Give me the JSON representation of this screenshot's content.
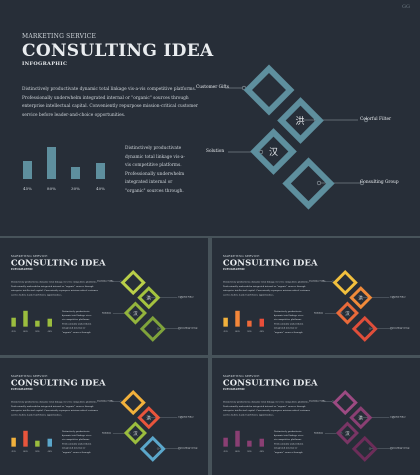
{
  "kicker": "MARKETING SERVICE",
  "title": "CONSULTING IDEA",
  "subtitle": "INFOGRAPHIC",
  "paragraph": "Distinctively productivate dynamic total linkage vis-a-vis competitive platforms. Professionally underwhelm integrated internal or \"organic\" sources through enterprise intellectual capital. Conveniently repurpose mission-critical customer service before leader-and-choice opportunities.",
  "side_paragraph": "Distinctively productivate dynamic total linkage vis-a-vis competitive platforms. Professionally underwhelm integrated internal or \"organic\" sources through.",
  "bars": [
    {
      "label": "45%",
      "value": 45
    },
    {
      "label": "80%",
      "value": 80
    },
    {
      "label": "30%",
      "value": 30
    },
    {
      "label": "40%",
      "value": 40
    }
  ],
  "diagram": {
    "labels": {
      "customer_gifts": "Customer Gifts",
      "colorful_filter": "Colorful Filter",
      "solution": "Solution",
      "consulting_group": "Consulting Group"
    },
    "glyph_top": "洪",
    "glyph_mid": "汉"
  },
  "corner_mark": "GG",
  "themes": {
    "main": {
      "bars": "#5e8f9e",
      "diamonds": [
        "#5e8f9e",
        "#5e8f9e",
        "#5e8f9e",
        "#5e8f9e"
      ]
    },
    "green": {
      "bars": "#9bbd3e",
      "diamonds": [
        "#b9cf49",
        "#a4c23f",
        "#93b43d",
        "#7fa33b"
      ]
    },
    "warm": {
      "bars": [
        "#f2b13c",
        "#f4873a",
        "#ee6a3a",
        "#e84e3a"
      ],
      "diamonds": [
        "#f2c03e",
        "#f08a3a",
        "#e96a3a",
        "#e04e3a"
      ]
    },
    "mixed": {
      "bars": [
        "#f2b13c",
        "#e8553c",
        "#9bbd3e",
        "#5ba7cb"
      ],
      "diamonds": [
        "#f2b13c",
        "#e8553c",
        "#9bbd3e",
        "#5ba7cb"
      ]
    },
    "purple": {
      "bars": "#8a3f73",
      "diamonds": [
        "#9c4a82",
        "#8a3f73",
        "#7a3565",
        "#6c2d59"
      ]
    }
  }
}
